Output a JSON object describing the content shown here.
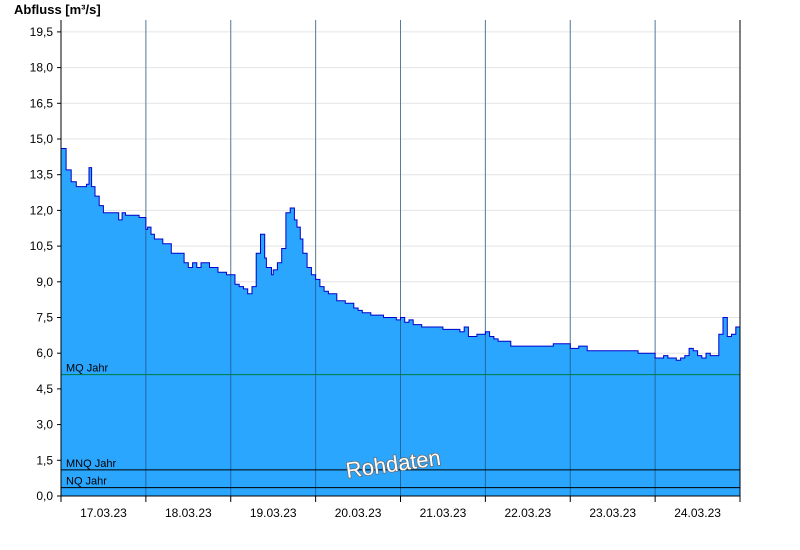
{
  "chart_data": {
    "type": "area",
    "ylabel": "Abfluss [m³/s]",
    "ylim": [
      0,
      20
    ],
    "yticks": [
      0,
      1.5,
      3,
      4.5,
      6,
      7.5,
      9,
      10.5,
      12,
      13.5,
      15,
      16.5,
      18,
      19.5
    ],
    "ytick_labels": [
      "0,0",
      "1,5",
      "3,0",
      "4,5",
      "6,0",
      "7,5",
      "9,0",
      "10,5",
      "12,0",
      "13,5",
      "15,0",
      "16,5",
      "18,0",
      "19,5"
    ],
    "xlim": [
      0,
      8
    ],
    "xtick_labels": [
      "17.03.23",
      "18.03.23",
      "19.03.23",
      "20.03.23",
      "21.03.23",
      "22.03.23",
      "23.03.23",
      "24.03.23"
    ],
    "grid": true,
    "colors": {
      "fill": "#2aa6ff",
      "line": "#0000cc",
      "mq": "#007a3d",
      "mnq": "#000000",
      "nq": "#000000"
    },
    "reference_lines": [
      {
        "label": "MQ Jahr",
        "value": 5.1
      },
      {
        "label": "MNQ Jahr",
        "value": 1.1
      },
      {
        "label": "NQ Jahr",
        "value": 0.35
      }
    ],
    "watermark": "Rohdaten",
    "series": [
      {
        "x": [
          0,
          0.06,
          0.12,
          0.18,
          0.24,
          0.3,
          0.33,
          0.36,
          0.4,
          0.45,
          0.5,
          0.55,
          0.62,
          0.68,
          0.72,
          0.76,
          0.8,
          0.85,
          0.92,
          1.0,
          1.02,
          1.06,
          1.1,
          1.2,
          1.3,
          1.4,
          1.45,
          1.5,
          1.55,
          1.6,
          1.65,
          1.75,
          1.85,
          1.95,
          2.05,
          2.1,
          2.15,
          2.2,
          2.25,
          2.3,
          2.35,
          2.4,
          2.42,
          2.48,
          2.5,
          2.55,
          2.6,
          2.65,
          2.7,
          2.75,
          2.78,
          2.82,
          2.85,
          2.9,
          2.95,
          3.0,
          3.05,
          3.1,
          3.15,
          3.25,
          3.35,
          3.45,
          3.5,
          3.55,
          3.65,
          3.8,
          3.95,
          4.0,
          4.05,
          4.1,
          4.15,
          4.25,
          4.5,
          4.7,
          4.75,
          4.8,
          4.9,
          5.0,
          5.05,
          5.1,
          5.15,
          5.2,
          5.3,
          5.5,
          5.8,
          6.0,
          6.1,
          6.2,
          6.4,
          6.8,
          7.0,
          7.05,
          7.1,
          7.15,
          7.2,
          7.25,
          7.3,
          7.35,
          7.4,
          7.45,
          7.5,
          7.55,
          7.6,
          7.65,
          7.7,
          7.75,
          7.8,
          7.85,
          7.9,
          7.95,
          8.0
        ],
        "y": [
          14.6,
          13.7,
          13.2,
          13.0,
          13.0,
          13.1,
          13.8,
          13.0,
          12.6,
          12.2,
          11.9,
          11.9,
          11.9,
          11.6,
          11.9,
          11.8,
          11.8,
          11.8,
          11.7,
          11.2,
          11.3,
          11.0,
          10.8,
          10.6,
          10.2,
          10.2,
          9.8,
          9.6,
          9.8,
          9.6,
          9.8,
          9.6,
          9.4,
          9.3,
          8.9,
          8.8,
          8.7,
          8.5,
          8.8,
          10.2,
          11.0,
          10.0,
          9.6,
          9.3,
          9.5,
          9.8,
          10.4,
          11.9,
          12.1,
          11.6,
          11.3,
          10.8,
          10.2,
          9.6,
          9.3,
          9.1,
          8.8,
          8.6,
          8.5,
          8.2,
          8.1,
          7.9,
          7.8,
          7.7,
          7.6,
          7.5,
          7.4,
          7.5,
          7.3,
          7.4,
          7.2,
          7.1,
          7.0,
          6.9,
          7.1,
          6.7,
          6.8,
          6.9,
          6.7,
          6.6,
          6.5,
          6.5,
          6.3,
          6.3,
          6.4,
          6.2,
          6.3,
          6.1,
          6.1,
          6.0,
          5.8,
          5.8,
          5.9,
          5.8,
          5.8,
          5.7,
          5.8,
          5.9,
          6.2,
          6.1,
          5.9,
          5.8,
          6.0,
          5.9,
          5.9,
          6.8,
          7.5,
          6.7,
          6.8,
          7.1,
          7.4
        ]
      }
    ]
  }
}
